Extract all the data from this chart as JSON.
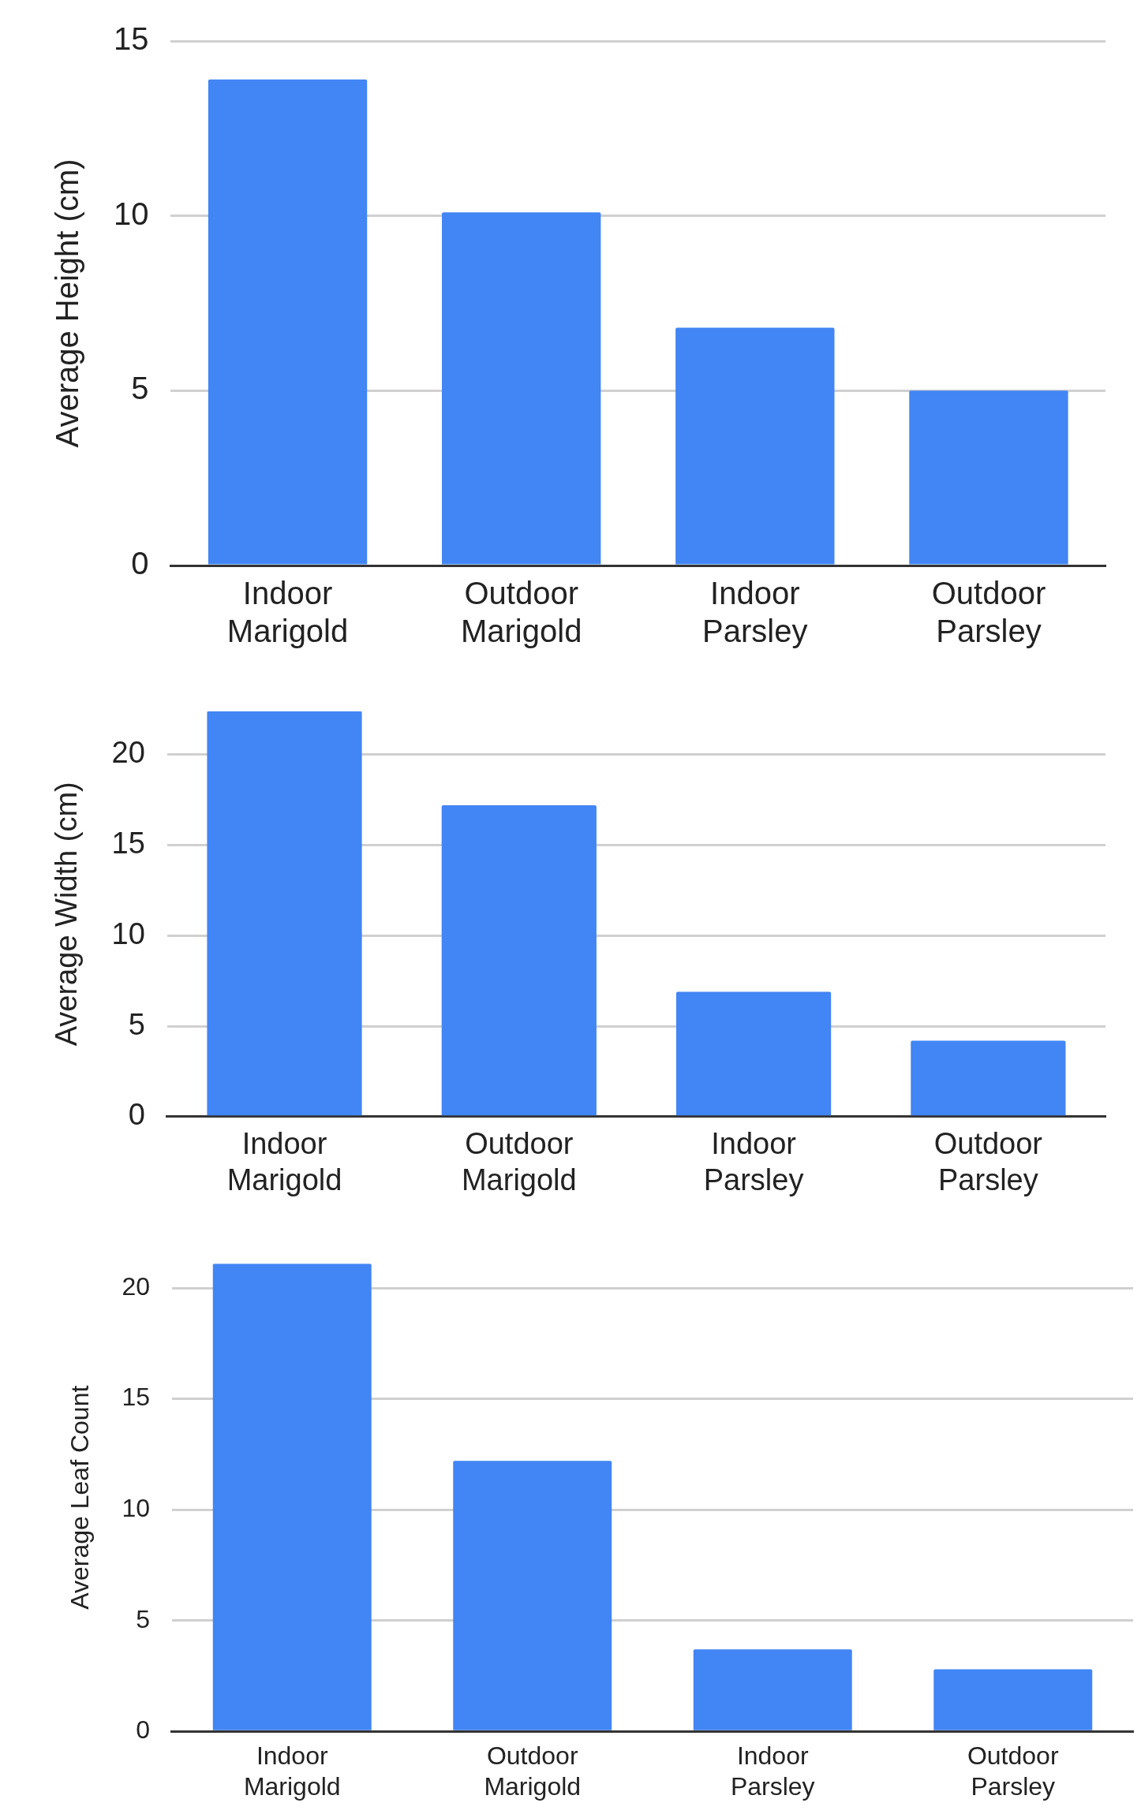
{
  "chart_data": [
    {
      "type": "bar",
      "ylabel": "Average Height (cm)",
      "categories": [
        "Indoor Marigold",
        "Outdoor Marigold",
        "Indoor Parsley",
        "Outdoor Parsley"
      ],
      "values": [
        13.9,
        10.1,
        6.8,
        5.0
      ],
      "color": "#4285f4",
      "ylim": [
        0,
        15
      ],
      "yticks": [
        0,
        5,
        10,
        15
      ],
      "grid": "y"
    },
    {
      "type": "bar",
      "ylabel": "Average Width (cm)",
      "categories": [
        "Indoor Marigold",
        "Outdoor Marigold",
        "Indoor Parsley",
        "Outdoor Parsley"
      ],
      "values": [
        22.4,
        17.2,
        6.9,
        4.2
      ],
      "color": "#4285f4",
      "ylim": [
        0,
        22.4
      ],
      "yticks": [
        0,
        5,
        10,
        15,
        20
      ],
      "grid": "y"
    },
    {
      "type": "bar",
      "ylabel": "Average Leaf Count",
      "categories": [
        "Indoor Marigold",
        "Outdoor Marigold",
        "Indoor Parsley",
        "Outdoor Parsley"
      ],
      "values": [
        21.1,
        12.2,
        3.7,
        2.8
      ],
      "color": "#4285f4",
      "ylim": [
        0,
        21.1
      ],
      "yticks": [
        0,
        5,
        10,
        15,
        20
      ],
      "grid": "y"
    }
  ]
}
